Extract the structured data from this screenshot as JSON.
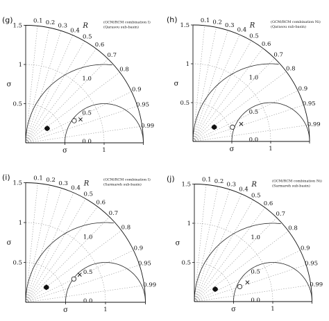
{
  "chart_data": [
    {
      "type": "scatter",
      "subtype": "taylor-diagram",
      "tag": "(g)",
      "note": [
        "(GCM/RCM combination I)",
        "(Qarasou sub-basin)"
      ],
      "std_ticks": [
        "0.5",
        "1",
        "1.5"
      ],
      "xlabel": "σ",
      "ylabel": "σ",
      "corr_title": "R",
      "corr_ticks": [
        "0.1",
        "0.2",
        "0.3",
        "0.4",
        "0.5",
        "0.6",
        "0.7",
        "0.8",
        "0.9",
        "0.95",
        "0.99"
      ],
      "rms_labels": [
        "1.0",
        "0.5",
        "0.0"
      ],
      "points": [
        {
          "marker": "x",
          "std": 0.76,
          "r": 0.92
        },
        {
          "marker": "circle",
          "std": 0.68,
          "r": 0.91
        },
        {
          "marker": "star-cluster",
          "std": 0.33,
          "r": 0.83
        }
      ]
    },
    {
      "type": "scatter",
      "subtype": "taylor-diagram",
      "tag": "(h)",
      "note": [
        "(GCM/RCM combination Ni)",
        "(Qarasou sub-basin)"
      ],
      "std_ticks": [
        "0.5",
        "1",
        "1.5"
      ],
      "xlabel": "σ",
      "ylabel": "σ",
      "corr_title": "R",
      "corr_ticks": [
        "0.1",
        "0.2",
        "0.3",
        "0.4",
        "0.5",
        "0.6",
        "0.7",
        "0.8",
        "0.9",
        "0.95",
        "0.99"
      ],
      "rms_labels": [
        "1.0",
        "0.5",
        "0.0"
      ],
      "points": [
        {
          "marker": "x",
          "std": 0.66,
          "r": 0.94
        },
        {
          "marker": "circle",
          "std": 0.54,
          "r": 0.94
        },
        {
          "marker": "star-cluster",
          "std": 0.33,
          "r": 0.83
        }
      ]
    },
    {
      "type": "scatter",
      "subtype": "taylor-diagram",
      "tag": "(i)",
      "note": [
        "(GCM/RCM combination I)",
        "(Sarmareh sub-basin)"
      ],
      "std_ticks": [
        "0.5",
        "1",
        "1.5"
      ],
      "xlabel": "σ",
      "ylabel": "σ",
      "corr_title": "R",
      "corr_ticks": [
        "0.1",
        "0.2",
        "0.3",
        "0.4",
        "0.5",
        "0.6",
        "0.7",
        "0.8",
        "0.9",
        "0.95",
        "0.99"
      ],
      "rms_labels": [
        "1.0",
        "0.5",
        "0.0"
      ],
      "points": [
        {
          "marker": "x",
          "std": 0.76,
          "r": 0.89
        },
        {
          "marker": "circle",
          "std": 0.67,
          "r": 0.9
        },
        {
          "marker": "star-cluster",
          "std": 0.32,
          "r": 0.81
        }
      ]
    },
    {
      "type": "scatter",
      "subtype": "taylor-diagram",
      "tag": "(j)",
      "note": [
        "(GCM/RCM combination Ni)",
        "(Sarmareh sub-basin)"
      ],
      "std_ticks": [
        "0.5",
        "1",
        "1.5"
      ],
      "xlabel": "σ",
      "ylabel": "σ",
      "corr_title": "R",
      "corr_ticks": [
        "0.1",
        "0.2",
        "0.3",
        "0.4",
        "0.5",
        "0.6",
        "0.7",
        "0.8",
        "0.9",
        "0.95",
        "0.99"
      ],
      "rms_labels": [
        "1.0",
        "0.5",
        "0.0"
      ],
      "points": [
        {
          "marker": "x",
          "std": 0.72,
          "r": 0.94
        },
        {
          "marker": "circle",
          "std": 0.61,
          "r": 0.95
        },
        {
          "marker": "star-cluster",
          "std": 0.31,
          "r": 0.86
        }
      ]
    }
  ]
}
